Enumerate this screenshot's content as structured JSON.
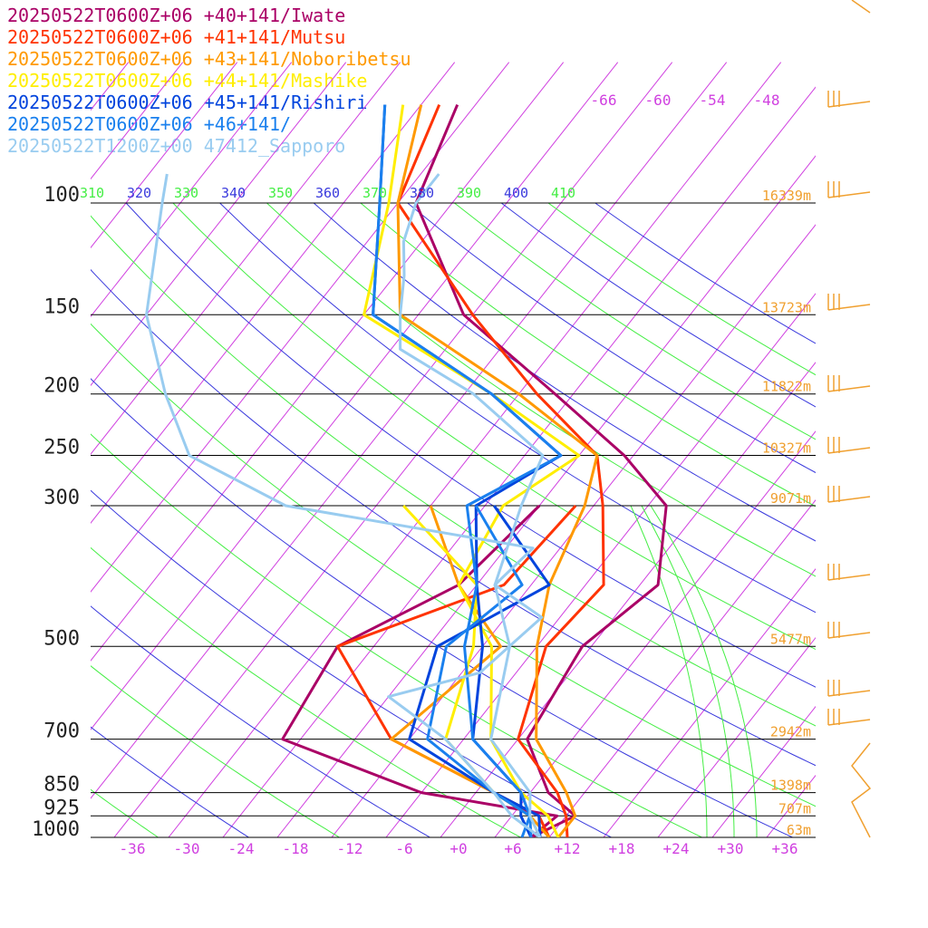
{
  "chart_data": {
    "type": "line",
    "subtype": "skew-t log-p sounding",
    "legend": [
      {
        "text": "20250522T0600Z+06 +40+141/Iwate",
        "color": "#aa0066"
      },
      {
        "text": "20250522T0600Z+06 +41+141/Mutsu",
        "color": "#ff3300"
      },
      {
        "text": "20250522T0600Z+06 +43+141/Noboribetsu",
        "color": "#ff9900"
      },
      {
        "text": "20250522T0600Z+06 +44+141/Mashike",
        "color": "#ffee00"
      },
      {
        "text": "20250522T0600Z+06 +45+141/Rishiri",
        "color": "#0044dd"
      },
      {
        "text": "20250522T0600Z+06 +46+141/",
        "color": "#1a80ee"
      },
      {
        "text": "20250522T1200Z+00 47412_Sapporo",
        "color": "#99ccf0"
      }
    ],
    "pressure_levels": [
      {
        "p": 100,
        "label": "100",
        "height": "16339m"
      },
      {
        "p": 150,
        "label": "150",
        "height": "13723m"
      },
      {
        "p": 200,
        "label": "200",
        "height": "11822m"
      },
      {
        "p": 250,
        "label": "250",
        "height": "10327m"
      },
      {
        "p": 300,
        "label": "300",
        "height": "9071m"
      },
      {
        "p": 500,
        "label": "500",
        "height": "5477m"
      },
      {
        "p": 700,
        "label": "700",
        "height": "2942m"
      },
      {
        "p": 850,
        "label": "850",
        "height": "1398m"
      },
      {
        "p": 925,
        "label": "925",
        "height": "707m"
      },
      {
        "p": 1000,
        "label": "1000",
        "height": "63m"
      }
    ],
    "x_ticks": [
      "-36",
      "-30",
      "-24",
      "-18",
      "-12",
      "-6",
      "+0",
      "+6",
      "+12",
      "+18",
      "+24",
      "+30",
      "+36"
    ],
    "top_temp_ticks": [
      "-66",
      "-60",
      "-54",
      "-48"
    ],
    "theta_labels": [
      "310",
      "320",
      "330",
      "340",
      "350",
      "360",
      "370",
      "380",
      "390",
      "400",
      "410"
    ],
    "series": [
      {
        "name": "20250522T0600Z+06 +40+141/Iwate",
        "color": "#aa0066",
        "temp": [
          [
            1000,
            8
          ],
          [
            925,
            11
          ],
          [
            850,
            6
          ],
          [
            700,
            -1
          ],
          [
            500,
            -3
          ],
          [
            400,
            0
          ],
          [
            300,
            -6
          ],
          [
            250,
            -15
          ],
          [
            200,
            -28
          ],
          [
            150,
            -45
          ],
          [
            100,
            -60
          ],
          [
            70,
            -64
          ]
        ],
        "dewpoint": [
          [
            1000,
            8
          ],
          [
            925,
            9
          ],
          [
            850,
            -8
          ],
          [
            700,
            -28
          ],
          [
            500,
            -30
          ],
          [
            400,
            -22
          ],
          [
            300,
            -20
          ]
        ]
      },
      {
        "name": "20250522T0600Z+06 +41+141/Mutsu",
        "color": "#ff3300",
        "temp": [
          [
            1000,
            12
          ],
          [
            925,
            10
          ],
          [
            850,
            7
          ],
          [
            700,
            -2
          ],
          [
            500,
            -7
          ],
          [
            400,
            -6
          ],
          [
            300,
            -13
          ],
          [
            250,
            -18
          ],
          [
            200,
            -30
          ],
          [
            150,
            -44
          ],
          [
            100,
            -62
          ],
          [
            70,
            -66
          ]
        ],
        "dewpoint": [
          [
            1000,
            10
          ],
          [
            925,
            7
          ],
          [
            850,
            0
          ],
          [
            700,
            -16
          ],
          [
            500,
            -30
          ],
          [
            400,
            -17
          ],
          [
            300,
            -16
          ]
        ]
      },
      {
        "name": "20250522T0600Z+06 +43+141/Noboribetsu",
        "color": "#ff9900",
        "temp": [
          [
            1000,
            11
          ],
          [
            925,
            11
          ],
          [
            850,
            8
          ],
          [
            700,
            0
          ],
          [
            500,
            -8
          ],
          [
            400,
            -12
          ],
          [
            300,
            -15
          ],
          [
            250,
            -18
          ],
          [
            200,
            -32
          ],
          [
            150,
            -52
          ],
          [
            100,
            -62
          ],
          [
            70,
            -68
          ]
        ],
        "dewpoint": [
          [
            1000,
            10
          ],
          [
            925,
            6
          ],
          [
            850,
            0
          ],
          [
            700,
            -16
          ],
          [
            500,
            -12
          ],
          [
            400,
            -22
          ],
          [
            300,
            -32
          ]
        ]
      },
      {
        "name": "20250522T0600Z+06 +44+141/Mashike",
        "color": "#ffee00",
        "temp": [
          [
            1000,
            11
          ],
          [
            925,
            8
          ],
          [
            850,
            3
          ],
          [
            700,
            -5
          ],
          [
            500,
            -13
          ],
          [
            400,
            -22
          ],
          [
            300,
            -24
          ],
          [
            250,
            -20
          ],
          [
            200,
            -35
          ],
          [
            150,
            -56
          ],
          [
            100,
            -63
          ],
          [
            70,
            -70
          ]
        ],
        "dewpoint": [
          [
            1000,
            9
          ],
          [
            925,
            6
          ],
          [
            850,
            0
          ],
          [
            700,
            -10
          ],
          [
            500,
            -15
          ],
          [
            400,
            -20
          ],
          [
            300,
            -35
          ]
        ]
      },
      {
        "name": "20250522T0600Z+06 +45+141/Rishiri",
        "color": "#0044dd",
        "temp": [
          [
            1000,
            8
          ],
          [
            925,
            5
          ],
          [
            850,
            3
          ],
          [
            700,
            -7
          ],
          [
            500,
            -14
          ],
          [
            400,
            -20
          ],
          [
            300,
            -27
          ],
          [
            250,
            -22
          ],
          [
            200,
            -35
          ],
          [
            150,
            -55
          ],
          [
            100,
            -64
          ],
          [
            70,
            -72
          ]
        ],
        "dewpoint": [
          [
            1000,
            9
          ],
          [
            925,
            7
          ],
          [
            850,
            0
          ],
          [
            700,
            -14
          ],
          [
            500,
            -19
          ],
          [
            400,
            -12
          ],
          [
            300,
            -25
          ]
        ]
      },
      {
        "name": "20250522T0600Z+06 +46+141/",
        "color": "#1a80ee",
        "temp": [
          [
            1000,
            7
          ],
          [
            925,
            6
          ],
          [
            850,
            3
          ],
          [
            700,
            -7
          ],
          [
            500,
            -16
          ],
          [
            400,
            -20
          ],
          [
            300,
            -28
          ],
          [
            250,
            -22
          ],
          [
            200,
            -35
          ],
          [
            150,
            -55
          ],
          [
            100,
            -64
          ],
          [
            70,
            -72
          ]
        ],
        "dewpoint": [
          [
            1000,
            8
          ],
          [
            925,
            6
          ],
          [
            850,
            0
          ],
          [
            700,
            -12
          ],
          [
            500,
            -18
          ],
          [
            400,
            -15
          ],
          [
            300,
            -27
          ]
        ]
      },
      {
        "name": "20250522T1200Z+00 47412_Sapporo",
        "color": "#99ccf0",
        "temp": [
          [
            1000,
            9
          ],
          [
            925,
            6
          ],
          [
            850,
            4
          ],
          [
            700,
            -5
          ],
          [
            500,
            -11
          ],
          [
            400,
            -18
          ],
          [
            300,
            -22
          ],
          [
            250,
            -24
          ],
          [
            200,
            -37
          ],
          [
            170,
            -49
          ],
          [
            150,
            -52
          ],
          [
            130,
            -55
          ],
          [
            115,
            -58
          ],
          [
            100,
            -60
          ],
          [
            90,
            -60
          ]
        ],
        "dewpoint": [
          [
            1000,
            9
          ],
          [
            925,
            4
          ],
          [
            850,
            0
          ],
          [
            700,
            -10
          ],
          [
            600,
            -20
          ],
          [
            550,
            -12
          ],
          [
            450,
            -10
          ],
          [
            400,
            -18
          ],
          [
            350,
            -17
          ],
          [
            300,
            -48
          ],
          [
            250,
            -63
          ],
          [
            200,
            -71
          ],
          [
            150,
            -80
          ],
          [
            100,
            -88
          ],
          [
            90,
            -90
          ]
        ]
      }
    ]
  }
}
